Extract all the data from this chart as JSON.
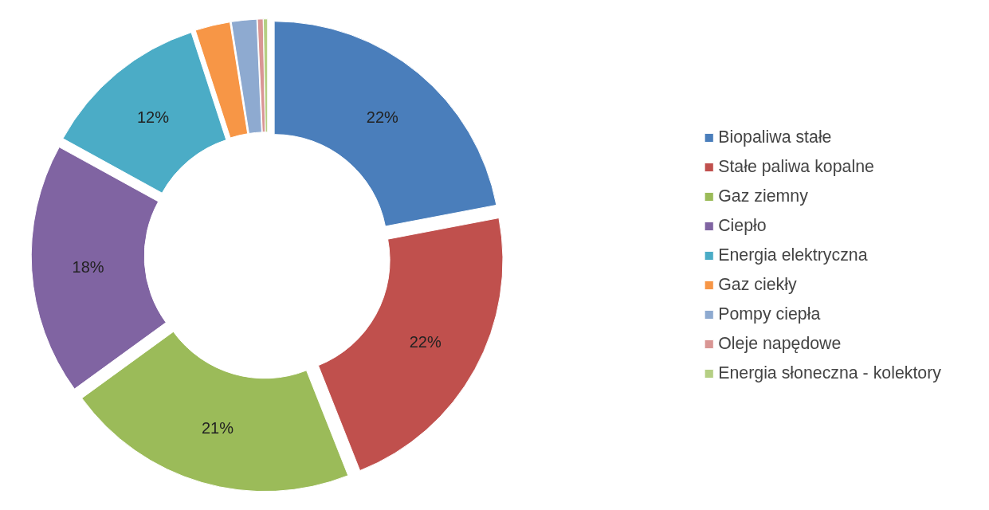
{
  "chart_data": {
    "type": "donut",
    "categories": [
      "Biopaliwa stałe",
      "Stałe paliwa kopalne",
      "Gaz ziemny",
      "Ciepło",
      "Energia elektryczna",
      "Gaz ciekły",
      "Pompy ciepła",
      "Oleje napędowe",
      "Energia słoneczna - kolektory"
    ],
    "values": [
      22,
      22,
      21,
      18,
      12,
      2.5,
      1.8,
      0.4,
      0.3
    ],
    "value_labels": [
      "22%",
      "22%",
      "21%",
      "18%",
      "12%",
      null,
      null,
      null,
      null
    ],
    "colors": [
      "#4a7ebb",
      "#c0504d",
      "#9bbb59",
      "#8064a2",
      "#4bacc6",
      "#f79646",
      "#8eaad0",
      "#d99694",
      "#b5cf84"
    ],
    "legend": "right"
  }
}
